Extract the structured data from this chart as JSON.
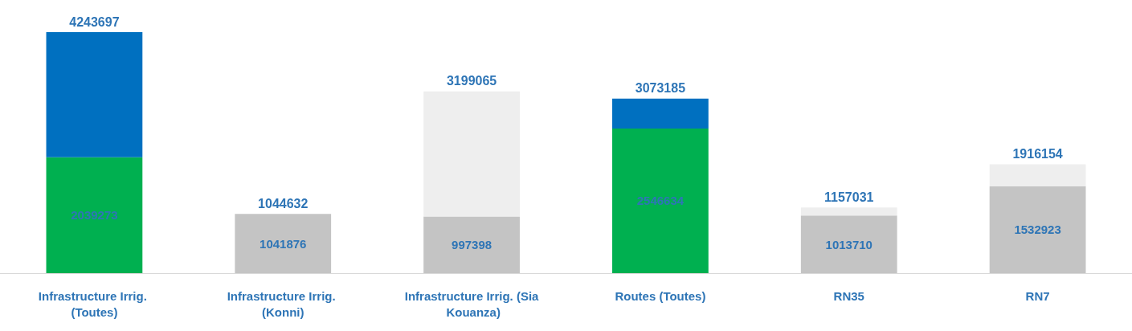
{
  "chart_data": {
    "type": "bar",
    "stacked": true,
    "categories": [
      "Infrastructure Irrig. (Toutes)",
      "Infrastructure Irrig. (Konni)",
      "Infrastructure Irrig. (Sia Kouanza)",
      "Routes (Toutes)",
      "RN35",
      "RN7"
    ],
    "series": [
      {
        "colors": [
          "#00b050",
          "#c4c4c4",
          "#c4c4c4",
          "#00b050",
          "#c4c4c4",
          "#c4c4c4"
        ],
        "values": [
          2039273,
          1041876,
          997398,
          2546634,
          1013710,
          1532923
        ],
        "value_labels": [
          "2039273",
          "1041876",
          "997398",
          "2546634",
          "1013710",
          "1532923"
        ]
      },
      {
        "colors": [
          "#0070c0",
          "#eeeeee",
          "#eeeeee",
          "#0070c0",
          "#eeeeee",
          "#eeeeee"
        ],
        "values": [
          2204424,
          2756,
          2201667,
          526551,
          143321,
          383231
        ]
      }
    ],
    "totals": [
      "4243697",
      "1044632",
      "3199065",
      "3073185",
      "1157031",
      "1916154"
    ]
  }
}
